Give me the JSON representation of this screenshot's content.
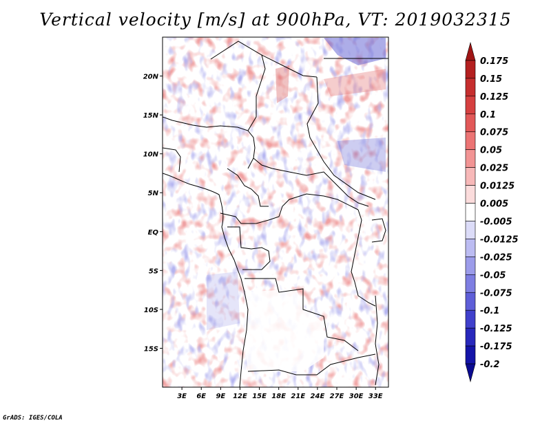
{
  "title": "Vertical velocity [m/s] at 900hPa, VT: 2019032315",
  "credit": "GrADS: IGES/COLA",
  "chart_data": {
    "type": "heatmap",
    "variable": "Vertical velocity",
    "units": "m/s",
    "level": "900hPa",
    "valid_time": "2019032315",
    "lon_range": [
      0,
      35
    ],
    "lat_range": [
      -20,
      25
    ],
    "lon_ticks": [
      {
        "value": 3,
        "label": "3E"
      },
      {
        "value": 6,
        "label": "6E"
      },
      {
        "value": 9,
        "label": "9E"
      },
      {
        "value": 12,
        "label": "12E"
      },
      {
        "value": 15,
        "label": "15E"
      },
      {
        "value": 18,
        "label": "18E"
      },
      {
        "value": 21,
        "label": "21E"
      },
      {
        "value": 24,
        "label": "24E"
      },
      {
        "value": 27,
        "label": "27E"
      },
      {
        "value": 30,
        "label": "30E"
      },
      {
        "value": 33,
        "label": "33E"
      }
    ],
    "lat_ticks": [
      {
        "value": 20,
        "label": "20N"
      },
      {
        "value": 15,
        "label": "15N"
      },
      {
        "value": 10,
        "label": "10N"
      },
      {
        "value": 5,
        "label": "5N"
      },
      {
        "value": 0,
        "label": "EQ"
      },
      {
        "value": -5,
        "label": "5S"
      },
      {
        "value": -10,
        "label": "10S"
      },
      {
        "value": -15,
        "label": "15S"
      }
    ],
    "colorbar": {
      "levels": [
        "0.175",
        "0.15",
        "0.125",
        "0.1",
        "0.075",
        "0.05",
        "0.025",
        "0.0125",
        "0.005",
        "-0.005",
        "-0.0125",
        "-0.025",
        "-0.05",
        "-0.075",
        "-0.1",
        "-0.125",
        "-0.175",
        "-0.2"
      ],
      "colors": [
        "#a01515",
        "#b42020",
        "#c62e2e",
        "#d64040",
        "#e25858",
        "#ec7474",
        "#f29494",
        "#f7b8b8",
        "#fbdcdc",
        "#ffffff",
        "#dcdcf8",
        "#bcbcf2",
        "#9c9cea",
        "#7e7ee2",
        "#5e5ed8",
        "#4040cc",
        "#2828bc",
        "#1414a8",
        "#0a0a90"
      ]
    }
  }
}
